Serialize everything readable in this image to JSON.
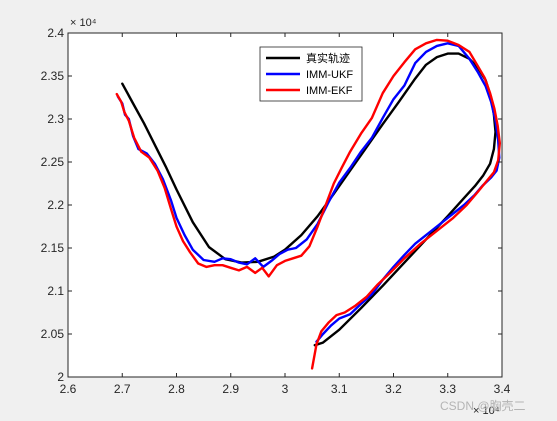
{
  "chart_data": {
    "type": "line",
    "xlim": [
      2.6,
      3.4
    ],
    "ylim": [
      2.0,
      2.4
    ],
    "x_ticks": [
      "2.6",
      "2.7",
      "2.8",
      "2.9",
      "3",
      "3.1",
      "3.2",
      "3.3",
      "3.4"
    ],
    "y_ticks": [
      "2",
      "2.05",
      "2.1",
      "2.15",
      "2.2",
      "2.25",
      "2.3",
      "2.35",
      "2.4"
    ],
    "x_exponent": "× 10⁴",
    "y_exponent": "× 10⁴",
    "grid": false,
    "legend_position": "top-center",
    "series": [
      {
        "name": "真实轨迹",
        "color": "#000000",
        "x": [
          2.7,
          2.72,
          2.74,
          2.76,
          2.78,
          2.8,
          2.83,
          2.86,
          2.89,
          2.92,
          2.95,
          2.98,
          3.0,
          3.03,
          3.06,
          3.09,
          3.12,
          3.15,
          3.18,
          3.21,
          3.24,
          3.26,
          3.28,
          3.3,
          3.32,
          3.34,
          3.355,
          3.37,
          3.38,
          3.385,
          3.388,
          3.385,
          3.378,
          3.365,
          3.35,
          3.33,
          3.3,
          3.26,
          3.22,
          3.18,
          3.14,
          3.1,
          3.07,
          3.055
        ],
        "y": [
          2.341,
          2.318,
          2.295,
          2.27,
          2.245,
          2.218,
          2.18,
          2.151,
          2.137,
          2.133,
          2.134,
          2.14,
          2.148,
          2.165,
          2.187,
          2.213,
          2.24,
          2.267,
          2.294,
          2.32,
          2.347,
          2.363,
          2.372,
          2.376,
          2.376,
          2.37,
          2.36,
          2.345,
          2.325,
          2.305,
          2.285,
          2.265,
          2.248,
          2.234,
          2.222,
          2.208,
          2.187,
          2.16,
          2.133,
          2.106,
          2.08,
          2.055,
          2.04,
          2.037
        ]
      },
      {
        "name": "IMM-UKF",
        "color": "#0000ff",
        "x": [
          2.692,
          2.7,
          2.705,
          2.712,
          2.72,
          2.73,
          2.745,
          2.76,
          2.775,
          2.79,
          2.8,
          2.815,
          2.83,
          2.85,
          2.87,
          2.885,
          2.9,
          2.915,
          2.93,
          2.945,
          2.96,
          2.975,
          2.99,
          3.005,
          3.02,
          3.04,
          3.06,
          3.08,
          3.1,
          3.12,
          3.14,
          3.16,
          3.18,
          3.2,
          3.22,
          3.24,
          3.26,
          3.28,
          3.3,
          3.32,
          3.34,
          3.355,
          3.37,
          3.38,
          3.388,
          3.393,
          3.395,
          3.39,
          3.38,
          3.365,
          3.35,
          3.33,
          3.3,
          3.27,
          3.24,
          3.22,
          3.2,
          3.18,
          3.16,
          3.14,
          3.12,
          3.1,
          3.085,
          3.07,
          3.058
        ],
        "y": [
          2.326,
          2.318,
          2.305,
          2.3,
          2.28,
          2.265,
          2.26,
          2.248,
          2.23,
          2.205,
          2.185,
          2.165,
          2.148,
          2.136,
          2.134,
          2.138,
          2.137,
          2.133,
          2.131,
          2.138,
          2.128,
          2.135,
          2.143,
          2.148,
          2.15,
          2.16,
          2.178,
          2.203,
          2.226,
          2.243,
          2.262,
          2.278,
          2.301,
          2.323,
          2.339,
          2.365,
          2.378,
          2.385,
          2.388,
          2.385,
          2.37,
          2.355,
          2.338,
          2.32,
          2.298,
          2.275,
          2.255,
          2.24,
          2.232,
          2.223,
          2.212,
          2.2,
          2.185,
          2.17,
          2.155,
          2.142,
          2.128,
          2.113,
          2.096,
          2.085,
          2.073,
          2.068,
          2.06,
          2.05,
          2.041
        ]
      },
      {
        "name": "IMM-EKF",
        "color": "#ff0000",
        "x": [
          2.69,
          2.698,
          2.704,
          2.712,
          2.722,
          2.735,
          2.75,
          2.765,
          2.778,
          2.79,
          2.8,
          2.812,
          2.825,
          2.84,
          2.855,
          2.87,
          2.885,
          2.9,
          2.915,
          2.93,
          2.945,
          2.958,
          2.97,
          2.985,
          3.0,
          3.015,
          3.03,
          3.045,
          3.06,
          3.075,
          3.09,
          3.105,
          3.12,
          3.14,
          3.16,
          3.18,
          3.2,
          3.22,
          3.24,
          3.26,
          3.28,
          3.3,
          3.32,
          3.34,
          3.355,
          3.368,
          3.378,
          3.386,
          3.392,
          3.396,
          3.393,
          3.385,
          3.372,
          3.355,
          3.335,
          3.31,
          3.28,
          3.25,
          3.22,
          3.195,
          3.17,
          3.15,
          3.13,
          3.11,
          3.095,
          3.08,
          3.067,
          3.058,
          3.05
        ],
        "y": [
          2.329,
          2.32,
          2.308,
          2.298,
          2.278,
          2.262,
          2.255,
          2.24,
          2.22,
          2.195,
          2.175,
          2.158,
          2.145,
          2.132,
          2.128,
          2.13,
          2.13,
          2.127,
          2.124,
          2.128,
          2.121,
          2.127,
          2.117,
          2.13,
          2.135,
          2.138,
          2.141,
          2.152,
          2.175,
          2.2,
          2.225,
          2.244,
          2.262,
          2.283,
          2.301,
          2.33,
          2.35,
          2.366,
          2.381,
          2.388,
          2.392,
          2.391,
          2.386,
          2.378,
          2.362,
          2.348,
          2.33,
          2.312,
          2.292,
          2.272,
          2.252,
          2.238,
          2.228,
          2.215,
          2.2,
          2.185,
          2.17,
          2.155,
          2.138,
          2.122,
          2.107,
          2.093,
          2.083,
          2.075,
          2.072,
          2.063,
          2.053,
          2.038,
          2.01
        ]
      }
    ]
  },
  "watermark": "CSDN @胸壳二"
}
